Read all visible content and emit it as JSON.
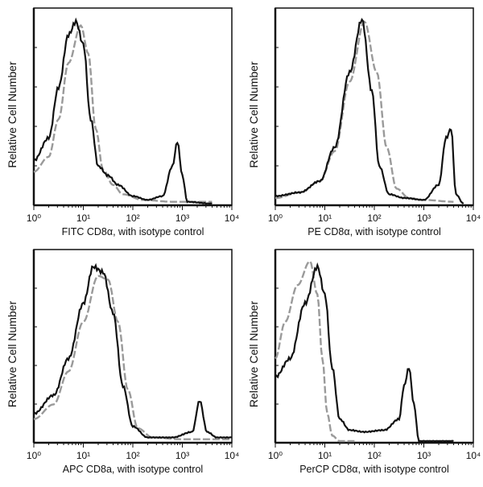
{
  "chart_data": [
    {
      "type": "line",
      "xscale": "log",
      "xlim": [
        1,
        10000
      ],
      "xticks": [
        "10⁰",
        "10¹",
        "10²",
        "10³",
        "10⁴"
      ],
      "xlabel": "FITC  CD8α,  with isotype control",
      "ylabel": "Relative Cell Number",
      "series": [
        {
          "style": "solid",
          "color": "#111111",
          "log10_x": [
            0,
            0.3,
            0.5,
            0.7,
            0.85,
            1.0,
            1.15,
            1.3,
            1.5,
            1.7,
            2.0,
            2.3,
            2.6,
            2.8,
            2.9,
            3.0,
            3.1,
            3.6
          ],
          "y": [
            0.23,
            0.35,
            0.62,
            0.9,
            0.97,
            0.85,
            0.45,
            0.2,
            0.15,
            0.1,
            0.04,
            0.02,
            0.04,
            0.2,
            0.33,
            0.15,
            0.01,
            0.0
          ]
        },
        {
          "style": "dashed",
          "color": "#9a9a9a",
          "log10_x": [
            0,
            0.3,
            0.5,
            0.7,
            0.95,
            1.1,
            1.25,
            1.4,
            1.6,
            1.8,
            2.2,
            2.8,
            3.6
          ],
          "y": [
            0.17,
            0.25,
            0.45,
            0.75,
            0.95,
            0.8,
            0.4,
            0.18,
            0.1,
            0.05,
            0.02,
            0.01,
            0.01
          ]
        }
      ]
    },
    {
      "type": "line",
      "xscale": "log",
      "xlim": [
        1,
        10000
      ],
      "xticks": [
        "10⁰",
        "10¹",
        "10²",
        "10³",
        "10⁴"
      ],
      "xlabel": "PE  CD8α,  with isotype control",
      "ylabel": "Relative Cell Number",
      "series": [
        {
          "style": "solid",
          "color": "#111111",
          "log10_x": [
            0,
            0.5,
            0.9,
            1.2,
            1.5,
            1.75,
            1.95,
            2.1,
            2.3,
            2.6,
            3.0,
            3.3,
            3.45,
            3.55,
            3.65,
            3.8
          ],
          "y": [
            0.04,
            0.06,
            0.12,
            0.3,
            0.7,
            0.98,
            0.6,
            0.2,
            0.05,
            0.03,
            0.02,
            0.1,
            0.35,
            0.4,
            0.05,
            0.0
          ]
        },
        {
          "style": "dashed",
          "color": "#9a9a9a",
          "log10_x": [
            0,
            0.5,
            0.9,
            1.2,
            1.5,
            1.8,
            2.05,
            2.25,
            2.45,
            2.7,
            3.0,
            3.6
          ],
          "y": [
            0.03,
            0.06,
            0.12,
            0.28,
            0.65,
            0.97,
            0.7,
            0.3,
            0.08,
            0.03,
            0.02,
            0.01
          ]
        }
      ]
    },
    {
      "type": "line",
      "xscale": "log",
      "xlim": [
        1,
        10000
      ],
      "xticks": [
        "10⁰",
        "10¹",
        "10²",
        "10³",
        "10⁴"
      ],
      "xlabel": "APC  CD8a,  with isotype control",
      "ylabel": "Relative Cell Number",
      "series": [
        {
          "style": "solid",
          "color": "#111111",
          "log10_x": [
            0,
            0.4,
            0.7,
            1.0,
            1.2,
            1.4,
            1.6,
            1.8,
            2.0,
            2.3,
            2.8,
            3.2,
            3.35,
            3.5,
            3.7,
            4.0
          ],
          "y": [
            0.15,
            0.25,
            0.45,
            0.75,
            0.95,
            0.92,
            0.7,
            0.3,
            0.08,
            0.02,
            0.02,
            0.05,
            0.22,
            0.05,
            0.02,
            0.02
          ]
        },
        {
          "style": "dashed",
          "color": "#9a9a9a",
          "log10_x": [
            0,
            0.4,
            0.7,
            1.0,
            1.3,
            1.5,
            1.7,
            1.9,
            2.1,
            2.4,
            3.0,
            3.5,
            4.0
          ],
          "y": [
            0.12,
            0.2,
            0.38,
            0.65,
            0.9,
            0.88,
            0.65,
            0.28,
            0.07,
            0.02,
            0.01,
            0.01,
            0.01
          ]
        }
      ]
    },
    {
      "type": "line",
      "xscale": "log",
      "xlim": [
        1,
        10000
      ],
      "xticks": [
        "10⁰",
        "10¹",
        "10²",
        "10³",
        "10⁴"
      ],
      "xlabel": "PerCP CD8α, with isotype control",
      "ylabel": "Relative Cell Number",
      "series": [
        {
          "style": "solid",
          "color": "#111111",
          "log10_x": [
            0,
            0.3,
            0.6,
            0.85,
            1.0,
            1.15,
            1.3,
            1.5,
            1.8,
            2.2,
            2.5,
            2.6,
            2.7,
            2.8,
            2.9,
            3.6
          ],
          "y": [
            0.35,
            0.45,
            0.75,
            0.95,
            0.8,
            0.4,
            0.12,
            0.06,
            0.05,
            0.06,
            0.12,
            0.3,
            0.4,
            0.2,
            0.0,
            0.0
          ]
        },
        {
          "style": "dashed",
          "color": "#9a9a9a",
          "log10_x": [
            0,
            0.2,
            0.45,
            0.7,
            0.85,
            0.95,
            1.05,
            1.15,
            1.3,
            1.6
          ],
          "y": [
            0.45,
            0.65,
            0.85,
            0.98,
            0.8,
            0.45,
            0.15,
            0.03,
            0.0,
            0.0
          ]
        }
      ]
    }
  ]
}
